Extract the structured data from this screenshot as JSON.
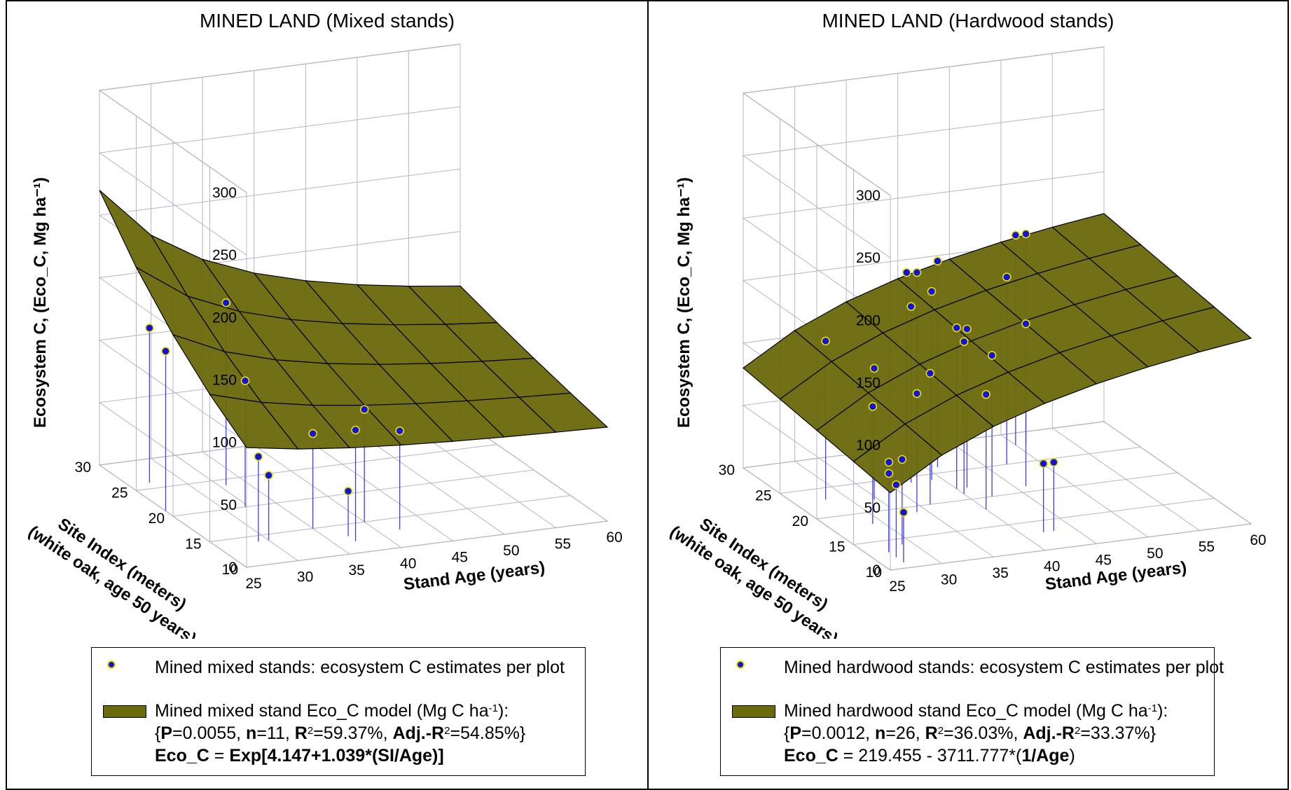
{
  "panels": [
    {
      "title": "MINED LAND (Mixed stands)",
      "ylabel": "Ecosystem C, (Eco_C, Mg ha⁻¹)",
      "xlabel": "Stand Age (years)",
      "zlabel_line1": "Site Index (meters)",
      "zlabel_line2": "(white oak, age 50 years)",
      "legend": {
        "points_label": "Mined mixed stands: ecosystem C estimates per plot",
        "model_label": "Mined mixed stand Eco_C model (Mg C ha",
        "model_unit_sup": "-1",
        "model_label_end": "):",
        "stats": {
          "P": "0.0055",
          "n": "11",
          "R2": "59.37%",
          "AdjR2": "54.85%"
        },
        "equation_lhs": "Eco_C",
        "equation_rhs_a": " = ",
        "equation_rhs_b": "Exp[4.147+1.039*(SI/Age)]"
      }
    },
    {
      "title": "MINED LAND (Hardwood stands)",
      "ylabel": "Ecosystem C, (Eco_C, Mg ha⁻¹)",
      "xlabel": "Stand Age (years)",
      "zlabel_line1": "Site Index (meters)",
      "zlabel_line2": "(white oak, age 50 years)",
      "legend": {
        "points_label": "Mined hardwood stands: ecosystem C estimates per plot",
        "model_label": "Mined hardwood stand Eco_C model (Mg C ha",
        "model_unit_sup": "-1",
        "model_label_end": "):",
        "stats": {
          "P": "0.0012",
          "n": "26",
          "R2": "36.03%",
          "AdjR2": "33.37%"
        },
        "equation_lhs": "Eco_C",
        "equation_rhs_a": " = 219.455 - 3711.777*(",
        "equation_rhs_b": "1/Age",
        "equation_rhs_c": ")"
      }
    }
  ],
  "colors": {
    "surface": "#6b6a0c",
    "surface_line": "#000000",
    "point_fill": "#1414d8",
    "point_edge": "#e8e000",
    "stem": "#3c3cf0",
    "grid": "#b4b4c8"
  },
  "chart_data": [
    {
      "type": "scatter",
      "subtype": "3d-surface-with-stem-points",
      "title": "MINED LAND (Mixed stands)",
      "xlabel": "Stand Age (years)",
      "ylabel": "Site Index (meters) (white oak, age 50 years)",
      "zlabel": "Ecosystem C, (Eco_C, Mg ha-1)",
      "x_ticks": [
        25,
        30,
        35,
        40,
        45,
        50,
        55,
        60
      ],
      "y_ticks": [
        10,
        15,
        20,
        25,
        30
      ],
      "z_ticks": [
        0,
        50,
        100,
        150,
        200,
        250,
        300
      ],
      "xlim": [
        25,
        60
      ],
      "ylim": [
        10,
        30
      ],
      "zlim": [
        0,
        300
      ],
      "model": "Eco_C = Exp[4.147+1.039*(SI/Age)]",
      "points": [
        {
          "age": 25,
          "si": 21,
          "eco_c": 128
        },
        {
          "age": 27,
          "si": 26,
          "eco_c": 124
        },
        {
          "age": 29,
          "si": 14,
          "eco_c": 68
        },
        {
          "age": 30,
          "si": 14,
          "eco_c": 52
        },
        {
          "age": 32,
          "si": 20,
          "eco_c": 101
        },
        {
          "age": 33,
          "si": 24,
          "eco_c": 146
        },
        {
          "age": 35,
          "si": 15,
          "eco_c": 76
        },
        {
          "age": 37,
          "si": 12,
          "eco_c": 89
        },
        {
          "age": 37,
          "si": 13,
          "eco_c": 36
        },
        {
          "age": 40,
          "si": 15,
          "eco_c": 90
        },
        {
          "age": 42,
          "si": 13,
          "eco_c": 79
        }
      ]
    },
    {
      "type": "scatter",
      "subtype": "3d-surface-with-stem-points",
      "title": "MINED LAND (Hardwood stands)",
      "xlabel": "Stand Age (years)",
      "ylabel": "Site Index (meters) (white oak, age 50 years)",
      "zlabel": "Ecosystem C, (Eco_C, Mg ha-1)",
      "x_ticks": [
        25,
        30,
        35,
        40,
        45,
        50,
        55,
        60
      ],
      "y_ticks": [
        10,
        15,
        20,
        25,
        30
      ],
      "z_ticks": [
        0,
        50,
        100,
        150,
        200,
        250,
        300
      ],
      "xlim": [
        25,
        60
      ],
      "ylim": [
        10,
        30
      ],
      "zlim": [
        0,
        300
      ],
      "model": "Eco_C = 219.455 - 3711.777*(1/Age)",
      "points": [
        {
          "age": 28,
          "si": 23,
          "eco_c": 127
        },
        {
          "age": 27,
          "si": 13,
          "eco_c": 63
        },
        {
          "age": 27,
          "si": 12,
          "eco_c": 58
        },
        {
          "age": 27,
          "si": 13,
          "eco_c": 72
        },
        {
          "age": 27,
          "si": 11,
          "eco_c": 40
        },
        {
          "age": 29,
          "si": 18,
          "eco_c": 94
        },
        {
          "age": 29,
          "si": 14,
          "eco_c": 68
        },
        {
          "age": 32,
          "si": 22,
          "eco_c": 105
        },
        {
          "age": 34,
          "si": 19,
          "eco_c": 95
        },
        {
          "age": 36,
          "si": 20,
          "eco_c": 105
        },
        {
          "age": 37,
          "si": 24,
          "eco_c": 141
        },
        {
          "age": 38,
          "si": 26,
          "eco_c": 159
        },
        {
          "age": 39,
          "si": 24,
          "eco_c": 151
        },
        {
          "age": 39,
          "si": 26,
          "eco_c": 158
        },
        {
          "age": 40,
          "si": 22,
          "eco_c": 129
        },
        {
          "age": 40,
          "si": 21,
          "eco_c": 122
        },
        {
          "age": 41,
          "si": 26,
          "eco_c": 165
        },
        {
          "age": 41,
          "si": 22,
          "eco_c": 127
        },
        {
          "age": 40,
          "si": 18,
          "eco_c": 92
        },
        {
          "age": 42,
          "si": 20,
          "eco_c": 113
        },
        {
          "age": 42,
          "si": 13,
          "eco_c": 55
        },
        {
          "age": 43,
          "si": 13,
          "eco_c": 55
        },
        {
          "age": 46,
          "si": 21,
          "eco_c": 130
        },
        {
          "age": 47,
          "si": 25,
          "eco_c": 150
        },
        {
          "age": 50,
          "si": 28,
          "eco_c": 168
        },
        {
          "age": 51,
          "si": 28,
          "eco_c": 168
        }
      ]
    }
  ]
}
